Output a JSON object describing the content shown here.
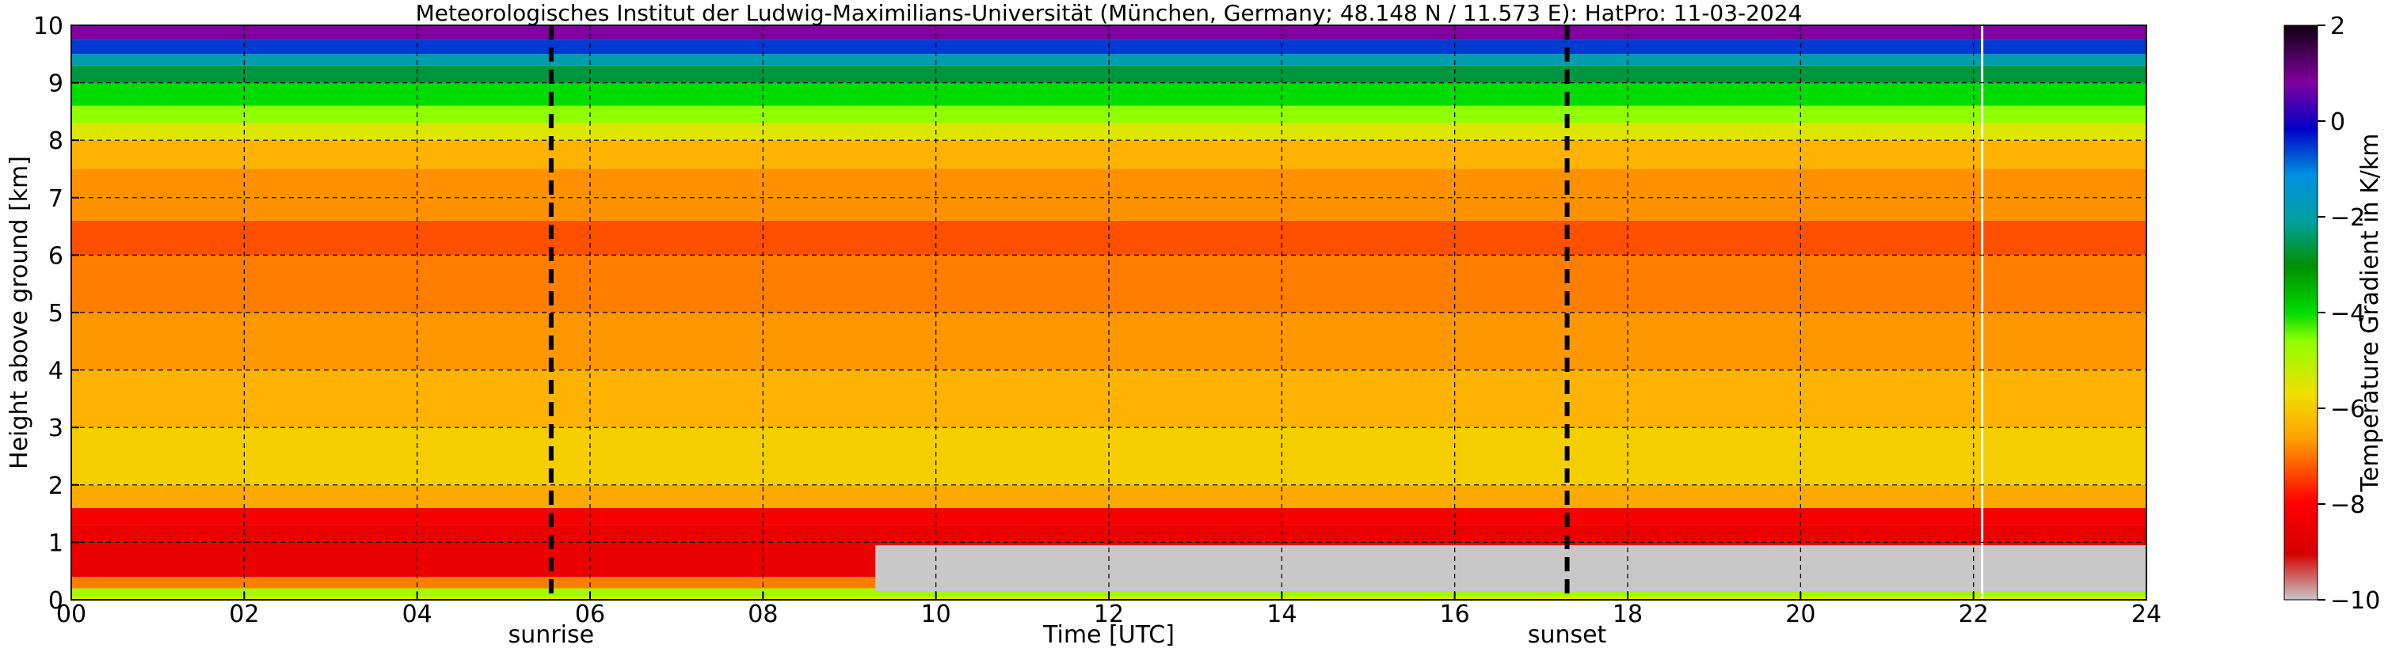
{
  "chart_data": {
    "type": "heatmap",
    "title": "Meteorologisches Institut der Ludwig-Maximilians-Universität (München, Germany; 48.148 N / 11.573 E):    HatPro: 11-03-2024",
    "xlabel": "Time [UTC]",
    "ylabel": "Height above ground [km]",
    "xlim": [
      0,
      24
    ],
    "ylim": [
      0,
      10
    ],
    "x_ticks": [
      "00",
      "02",
      "04",
      "06",
      "08",
      "10",
      "12",
      "14",
      "16",
      "18",
      "20",
      "22",
      "24"
    ],
    "y_ticks": [
      "0",
      "1",
      "2",
      "3",
      "4",
      "5",
      "6",
      "7",
      "8",
      "9",
      "10"
    ],
    "grid": true,
    "colorbar": {
      "label": "Temperature Gradient in K/km",
      "ticks": [
        "2",
        "0",
        "−2",
        "−4",
        "−6",
        "−8",
        "−10"
      ],
      "range": [
        -10,
        2
      ]
    },
    "annotations": [
      {
        "text": "sunrise",
        "x": 5.55
      },
      {
        "text": "sunset",
        "x": 17.3
      }
    ],
    "missing_data_x": 22.1,
    "layers": [
      {
        "y0": 0.0,
        "y1": 0.05,
        "value": -6
      },
      {
        "y0": 0.05,
        "y1": 0.2,
        "value": -5.2
      },
      {
        "y0": 0.2,
        "y1": 0.4,
        "value": -7.3
      },
      {
        "y0": 0.4,
        "y1": 1.3,
        "value": -8.5
      },
      {
        "y0": 1.3,
        "y1": 1.6,
        "value": -8.2
      },
      {
        "y0": 1.6,
        "y1": 2.0,
        "value": -6.6
      },
      {
        "y0": 2.0,
        "y1": 3.0,
        "value": -6.2
      },
      {
        "y0": 3.0,
        "y1": 4.0,
        "value": -6.5
      },
      {
        "y0": 4.0,
        "y1": 5.0,
        "value": -6.9
      },
      {
        "y0": 5.0,
        "y1": 6.0,
        "value": -7.3
      },
      {
        "y0": 6.0,
        "y1": 6.6,
        "value": -7.6
      },
      {
        "y0": 6.6,
        "y1": 7.5,
        "value": -7.0
      },
      {
        "y0": 7.5,
        "y1": 8.0,
        "value": -6.5
      },
      {
        "y0": 8.0,
        "y1": 8.3,
        "value": -5.8
      },
      {
        "y0": 8.3,
        "y1": 8.6,
        "value": -5.0
      },
      {
        "y0": 8.6,
        "y1": 9.0,
        "value": -4.0
      },
      {
        "y0": 9.0,
        "y1": 9.3,
        "value": -2.6
      },
      {
        "y0": 9.3,
        "y1": 9.5,
        "value": -1.8
      },
      {
        "y0": 9.5,
        "y1": 9.75,
        "value": -0.4
      },
      {
        "y0": 9.75,
        "y1": 10.0,
        "value": 1.0
      }
    ],
    "inversion_region": {
      "x0": 9.3,
      "x1": 24,
      "y0": 0.15,
      "y1": 0.95,
      "value": -10
    }
  }
}
